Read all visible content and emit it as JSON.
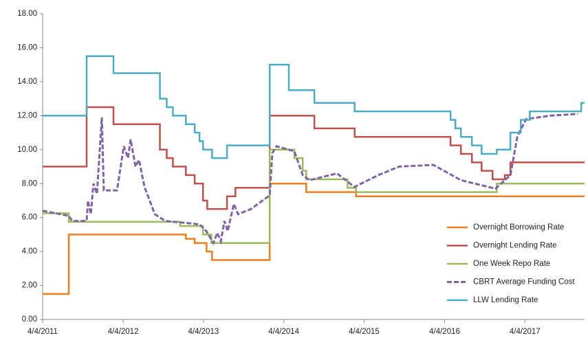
{
  "chart_data": {
    "type": "line",
    "xlim": [
      "2011-04-04",
      "2017-12-31"
    ],
    "xticks": [
      {
        "value": "2011-04-04",
        "label": "4/4/2011"
      },
      {
        "value": "2012-04-04",
        "label": "4/4/2012"
      },
      {
        "value": "2013-04-04",
        "label": "4/4/2013"
      },
      {
        "value": "2014-04-04",
        "label": "4/4/2014"
      },
      {
        "value": "2015-04-04",
        "label": "4/4/2015"
      },
      {
        "value": "2016-04-04",
        "label": "4/4/2016"
      },
      {
        "value": "2017-04-04",
        "label": "4/4/2017"
      }
    ],
    "ylim": [
      0,
      18
    ],
    "yticks": [
      {
        "value": 0,
        "label": "0.00"
      },
      {
        "value": 2,
        "label": "2.00"
      },
      {
        "value": 4,
        "label": "4.00"
      },
      {
        "value": 6,
        "label": "6.00"
      },
      {
        "value": 8,
        "label": "8.00"
      },
      {
        "value": 10,
        "label": "10.00"
      },
      {
        "value": 12,
        "label": "12.00"
      },
      {
        "value": 14,
        "label": "14.00"
      },
      {
        "value": 16,
        "label": "16.00"
      },
      {
        "value": 18,
        "label": "18.00"
      }
    ],
    "grid": false,
    "legend": "lower right",
    "series": [
      {
        "name": "Overnight Borrowing Rate",
        "color": "#f07f1b",
        "dash": false,
        "x": [
          "2011-04-04",
          "2011-08-01",
          "2011-08-01",
          "2013-01-14",
          "2013-01-14",
          "2013-02-23",
          "2013-02-23",
          "2013-04-18",
          "2013-04-18",
          "2013-05-13",
          "2013-05-13",
          "2014-01-30",
          "2014-01-30",
          "2014-07-15",
          "2014-07-15",
          "2015-02-26",
          "2015-02-26",
          "2017-12-31"
        ],
        "values": [
          1.5,
          1.5,
          5,
          5,
          4.75,
          4.75,
          4.5,
          4.5,
          4,
          4,
          3.5,
          3.5,
          8,
          8,
          7.5,
          7.5,
          7.25,
          7.25
        ]
      },
      {
        "name": "Overnight Lending Rate",
        "color": "#c0504d",
        "dash": false,
        "x": [
          "2011-04-04",
          "2011-10-21",
          "2011-10-21",
          "2012-02-20",
          "2012-02-20",
          "2012-09-18",
          "2012-09-18",
          "2012-10-19",
          "2012-10-19",
          "2012-11-16",
          "2012-11-16",
          "2013-01-14",
          "2013-01-14",
          "2013-02-23",
          "2013-02-23",
          "2013-04-02",
          "2013-04-02",
          "2013-04-21",
          "2013-04-21",
          "2013-07-20",
          "2013-07-20",
          "2013-08-27",
          "2013-08-27",
          "2014-01-30",
          "2014-01-30",
          "2014-08-21",
          "2014-08-21",
          "2015-02-20",
          "2015-02-20",
          "2016-05-01",
          "2016-05-01",
          "2016-06-17",
          "2016-06-17",
          "2016-08-06",
          "2016-08-06",
          "2016-09-19",
          "2016-09-19",
          "2016-11-08",
          "2016-11-08",
          "2017-01-03",
          "2017-01-03",
          "2017-01-28",
          "2017-01-28",
          "2017-12-31"
        ],
        "values": [
          9,
          9,
          12.5,
          12.5,
          11.5,
          11.5,
          10,
          10,
          9.5,
          9.5,
          9,
          9,
          8.5,
          8.5,
          8,
          8,
          7,
          7,
          6.5,
          6.5,
          7.25,
          7.25,
          7.75,
          7.75,
          12,
          12,
          11.25,
          11.25,
          10.75,
          10.75,
          10.25,
          10.25,
          9.75,
          9.75,
          9.25,
          9.25,
          8.75,
          8.75,
          8.25,
          8.25,
          8.5,
          8.5,
          9.25,
          9.25
        ]
      },
      {
        "name": "One Week Repo Rate",
        "color": "#9bbb59",
        "dash": false,
        "x": [
          "2011-04-04",
          "2011-08-01",
          "2011-08-01",
          "2012-12-19",
          "2012-12-19",
          "2013-04-02",
          "2013-04-02",
          "2013-05-10",
          "2013-05-10",
          "2014-01-30",
          "2014-01-30",
          "2014-05-22",
          "2014-05-22",
          "2014-06-29",
          "2014-06-29",
          "2014-07-15",
          "2014-07-15",
          "2015-01-19",
          "2015-01-19",
          "2015-02-26",
          "2015-02-26",
          "2016-11-27",
          "2016-11-27",
          "2017-12-31"
        ],
        "values": [
          6.25,
          6.25,
          5.75,
          5.75,
          5.5,
          5.5,
          5,
          5,
          4.5,
          4.5,
          10,
          10,
          9.5,
          9.5,
          8.75,
          8.75,
          8.25,
          8.25,
          7.75,
          7.75,
          7.5,
          7.5,
          8,
          8
        ]
      },
      {
        "name": "CBRT Average Funding Cost",
        "color": "#8064a2",
        "dash": true,
        "x": [
          "2011-04-04",
          "2011-08-01",
          "2011-08-16",
          "2011-10-21",
          "2011-10-27",
          "2011-11-09",
          "2011-11-21",
          "2011-12-07",
          "2011-12-29",
          "2012-01-07",
          "2012-03-07",
          "2012-04-07",
          "2012-04-26",
          "2012-05-08",
          "2012-05-30",
          "2012-06-15",
          "2012-07-10",
          "2012-08-26",
          "2012-10-12",
          "2013-03-17",
          "2013-04-17",
          "2013-05-19",
          "2013-06-06",
          "2013-06-22",
          "2013-07-08",
          "2013-07-23",
          "2013-08-20",
          "2013-09-08",
          "2013-11-06",
          "2014-01-08",
          "2014-01-30",
          "2014-02-11",
          "2014-03-02",
          "2014-05-22",
          "2014-06-29",
          "2014-07-30",
          "2014-12-02",
          "2015-02-19",
          "2015-06-08",
          "2015-09-10",
          "2016-02-13",
          "2016-06-17",
          "2016-11-21",
          "2017-01-28",
          "2017-03-01",
          "2017-04-10",
          "2017-07-29",
          "2017-12-01"
        ],
        "values": [
          6.4,
          6.1,
          5.8,
          5.8,
          7.0,
          6.2,
          8.0,
          7.4,
          11.9,
          7.6,
          7.6,
          10.2,
          9.5,
          10.6,
          9.0,
          9.4,
          7.8,
          6.2,
          5.8,
          5.6,
          5.2,
          4.5,
          5.1,
          4.6,
          5.8,
          5.2,
          6.8,
          6.2,
          6.5,
          7.1,
          7.3,
          9.8,
          10.2,
          9.9,
          8.5,
          8.2,
          8.6,
          7.8,
          8.5,
          9.0,
          9.1,
          8.2,
          7.7,
          8.5,
          10.8,
          11.8,
          12.0,
          12.1
        ]
      },
      {
        "name": "LLW Lending Rate",
        "color": "#4bacc6",
        "dash": false,
        "x": [
          "2011-04-04",
          "2011-10-21",
          "2011-10-21",
          "2012-02-20",
          "2012-02-20",
          "2012-09-18",
          "2012-09-18",
          "2012-10-19",
          "2012-10-19",
          "2012-11-16",
          "2012-11-16",
          "2013-01-14",
          "2013-01-14",
          "2013-02-23",
          "2013-02-23",
          "2013-03-17",
          "2013-03-17",
          "2013-04-02",
          "2013-04-02",
          "2013-05-13",
          "2013-05-13",
          "2013-07-20",
          "2013-07-20",
          "2014-01-30",
          "2014-01-30",
          "2014-04-27",
          "2014-04-27",
          "2014-08-21",
          "2014-08-21",
          "2015-02-20",
          "2015-02-20",
          "2016-05-01",
          "2016-05-01",
          "2016-05-23",
          "2016-05-23",
          "2016-06-17",
          "2016-06-17",
          "2016-08-06",
          "2016-08-06",
          "2016-09-19",
          "2016-09-19",
          "2016-11-27",
          "2016-11-27",
          "2017-01-28",
          "2017-01-28",
          "2017-03-16",
          "2017-03-16",
          "2017-04-26",
          "2017-04-26",
          "2017-12-16",
          "2017-12-16",
          "2017-12-31"
        ],
        "values": [
          12,
          12,
          15.5,
          15.5,
          14.5,
          14.5,
          13,
          13,
          12.5,
          12.5,
          12,
          12,
          11.5,
          11.5,
          11,
          11,
          10.5,
          10.5,
          10,
          10,
          9.5,
          9.5,
          10.25,
          10.25,
          15,
          15,
          13.5,
          13.5,
          12.75,
          12.75,
          12.25,
          12.25,
          11.75,
          11.75,
          11.25,
          11.25,
          10.75,
          10.75,
          10.25,
          10.25,
          9.75,
          9.75,
          10,
          10,
          11,
          11,
          11.75,
          11.75,
          12.25,
          12.25,
          12.75,
          12.75
        ]
      }
    ]
  }
}
